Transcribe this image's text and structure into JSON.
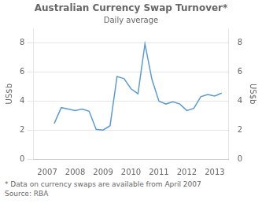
{
  "chart_data": {
    "type": "line",
    "title": "Australian Currency Swap Turnover*",
    "subtitle": "Daily average",
    "ylabel": "US$b",
    "y2label": "US$b",
    "annotations": [
      "*   Data on currency swaps are available from April 2007",
      "Source: RBA"
    ],
    "x": [
      2007.25,
      2007.5,
      2007.75,
      2008.0,
      2008.25,
      2008.5,
      2008.75,
      2009.0,
      2009.25,
      2009.5,
      2009.75,
      2010.0,
      2010.25,
      2010.5,
      2010.75,
      2011.0,
      2011.25,
      2011.5,
      2011.75,
      2012.0,
      2012.25,
      2012.5,
      2012.75,
      2013.0,
      2013.25
    ],
    "values": [
      2.45,
      3.55,
      3.45,
      3.35,
      3.45,
      3.3,
      2.05,
      2.0,
      2.3,
      5.7,
      5.55,
      4.85,
      4.5,
      7.95,
      5.5,
      4.0,
      3.8,
      3.95,
      3.8,
      3.35,
      3.5,
      4.3,
      4.45,
      4.35,
      4.55
    ],
    "color": "#5b9bd5",
    "xlim": [
      2006.5,
      2013.5
    ],
    "xticks": [
      2007,
      2008,
      2009,
      2010,
      2011,
      2012,
      2013
    ],
    "ylim": [
      0,
      9
    ],
    "yticks": [
      0,
      2,
      4,
      6,
      8
    ],
    "y2lim": [
      0,
      9
    ],
    "y2ticks": [
      0,
      2,
      4,
      6,
      8
    ],
    "grid": true
  }
}
